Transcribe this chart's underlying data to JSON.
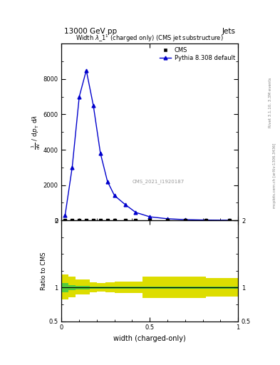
{
  "title_top": "13000 GeV pp",
  "title_right": "Jets",
  "plot_title": "Width $\\lambda$\\_1$^1$ (charged only) (CMS jet substructure)",
  "xlabel": "width (charged-only)",
  "ylabel_main_parts": [
    "mathrm d$^2$N",
    "mathrm d p$_T$ mathrm d lambda"
  ],
  "ylabel_ratio": "Ratio to CMS",
  "right_label": "Rivet 3.1.10, 3.3M events",
  "right_label2": "mcplots.cern.ch [arXiv:1306.3436]",
  "watermark": "CMS_2021_I1920187",
  "legend_cms": "CMS",
  "legend_pythia": "Pythia 8.308 default",
  "pythia_x": [
    0.02,
    0.06,
    0.1,
    0.14,
    0.18,
    0.22,
    0.26,
    0.3,
    0.36,
    0.42,
    0.5,
    0.6,
    0.7,
    0.82,
    0.95
  ],
  "pythia_y": [
    300,
    3000,
    7000,
    8500,
    6500,
    3800,
    2200,
    1400,
    900,
    450,
    200,
    90,
    40,
    15,
    5
  ],
  "cms_x": [
    0.02,
    0.06,
    0.1,
    0.14,
    0.18,
    0.22,
    0.26,
    0.3,
    0.36,
    0.42,
    0.5,
    0.6,
    0.7,
    0.82,
    0.95
  ],
  "cms_y": [
    0,
    0,
    0,
    0,
    0,
    0,
    0,
    0,
    0,
    0,
    0,
    0,
    0,
    0,
    0
  ],
  "ratio_x": [
    0.0,
    0.04,
    0.08,
    0.12,
    0.16,
    0.2,
    0.25,
    0.3,
    0.35,
    0.4,
    0.46,
    0.52,
    0.58,
    0.64,
    0.7,
    0.76,
    0.82,
    0.88,
    0.94,
    1.0
  ],
  "ratio_green_low": [
    0.93,
    0.96,
    0.97,
    0.97,
    0.98,
    0.98,
    0.98,
    0.98,
    0.98,
    0.98,
    0.98,
    0.98,
    0.98,
    0.98,
    0.98,
    0.98,
    0.98,
    0.98,
    0.98,
    0.98
  ],
  "ratio_green_high": [
    1.07,
    1.04,
    1.03,
    1.03,
    1.02,
    1.02,
    1.02,
    1.02,
    1.02,
    1.02,
    1.02,
    1.02,
    1.02,
    1.02,
    1.02,
    1.02,
    1.02,
    1.02,
    1.02,
    1.02
  ],
  "ratio_yellow_low": [
    0.82,
    0.86,
    0.9,
    0.9,
    0.93,
    0.94,
    0.93,
    0.92,
    0.92,
    0.92,
    0.85,
    0.85,
    0.85,
    0.85,
    0.85,
    0.85,
    0.87,
    0.87,
    0.87,
    0.87
  ],
  "ratio_yellow_high": [
    1.2,
    1.16,
    1.12,
    1.12,
    1.08,
    1.07,
    1.08,
    1.09,
    1.09,
    1.09,
    1.16,
    1.16,
    1.16,
    1.16,
    1.16,
    1.16,
    1.14,
    1.14,
    1.14,
    1.14
  ],
  "ylim_main": [
    0,
    10000
  ],
  "ylim_ratio": [
    0.5,
    2.0
  ],
  "xlim": [
    0.0,
    1.0
  ],
  "yticks_main": [
    0,
    2000,
    4000,
    6000,
    8000
  ],
  "ytick_labels_main": [
    "0",
    "2000",
    "4000",
    "6000",
    "8000"
  ],
  "yticks_ratio_left": [
    0.5,
    1.0,
    2.0
  ],
  "ytick_labels_ratio_left": [
    "0.5",
    "1",
    "2"
  ],
  "yticks_ratio_right": [
    0.5,
    1.0,
    2.0
  ],
  "ytick_labels_ratio_right": [
    "0.5",
    "1",
    "2"
  ],
  "main_color": "#0000cc",
  "cms_color": "black",
  "green_color": "#44cc44",
  "yellow_color": "#dddd00",
  "bg_color": "white"
}
